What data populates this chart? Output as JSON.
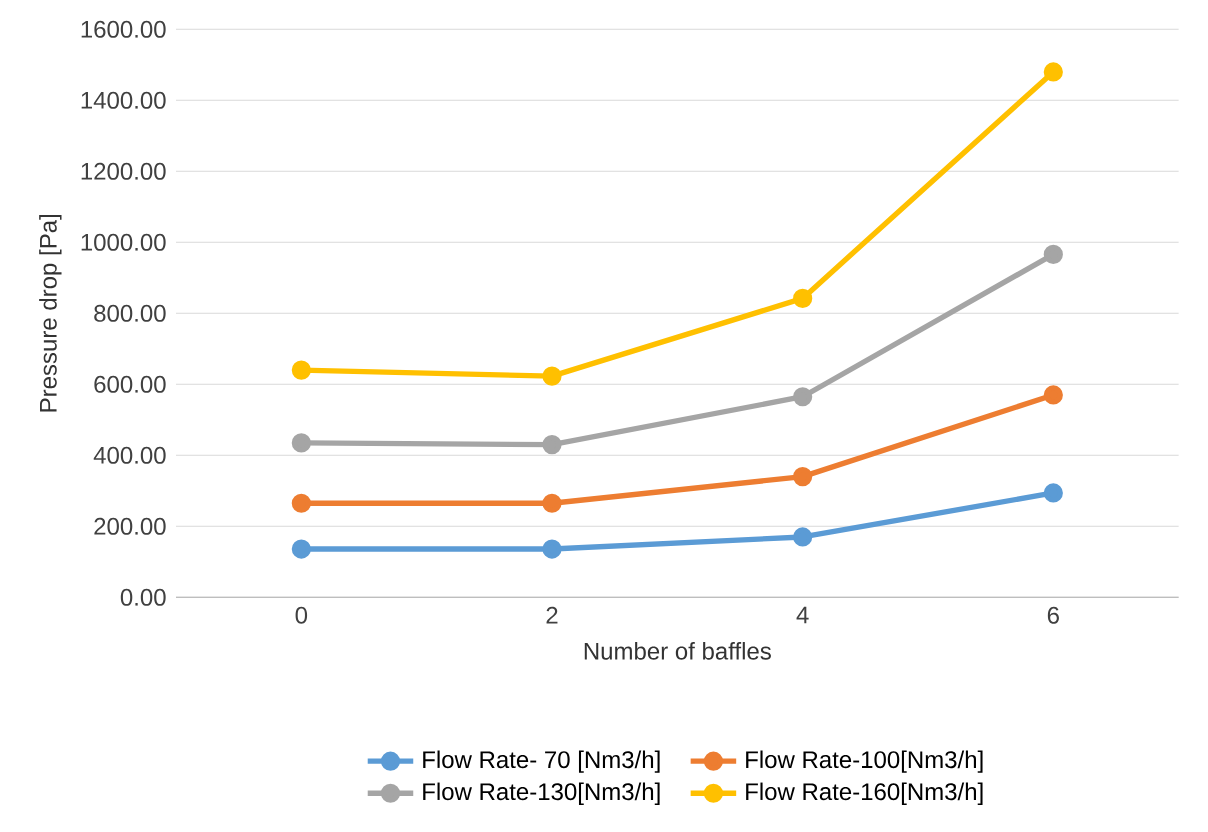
{
  "chart_data": {
    "type": "line",
    "xlabel": "Number of baffles",
    "ylabel": "Pressure drop [Pa]",
    "categories": [
      "0",
      "2",
      "4",
      "6"
    ],
    "series": [
      {
        "name": "Flow Rate- 70 [Nm3/h]",
        "color": "#5b9bd5",
        "values": [
          136,
          136,
          170,
          294
        ]
      },
      {
        "name": "Flow Rate-100[Nm3/h]",
        "color": "#ed7d31",
        "values": [
          265,
          265,
          340,
          570
        ]
      },
      {
        "name": "Flow Rate-130[Nm3/h]",
        "color": "#a5a5a5",
        "values": [
          435,
          430,
          565,
          966
        ]
      },
      {
        "name": "Flow Rate-160[Nm3/h]",
        "color": "#ffc000",
        "values": [
          640,
          623,
          842,
          1480
        ]
      }
    ],
    "ylim": [
      0,
      1600
    ],
    "yticks": [
      {
        "value": 0,
        "label": "0.00"
      },
      {
        "value": 200,
        "label": "200.00"
      },
      {
        "value": 400,
        "label": "400.00"
      },
      {
        "value": 600,
        "label": "600.00"
      },
      {
        "value": 800,
        "label": "800.00"
      },
      {
        "value": 1000,
        "label": "1000.00"
      },
      {
        "value": 1200,
        "label": "1200.00"
      },
      {
        "value": 1400,
        "label": "1400.00"
      },
      {
        "value": 1600,
        "label": "1600.00"
      }
    ],
    "grid": "y",
    "legend": "bottom",
    "marker": "circle",
    "line_style": "solid"
  }
}
